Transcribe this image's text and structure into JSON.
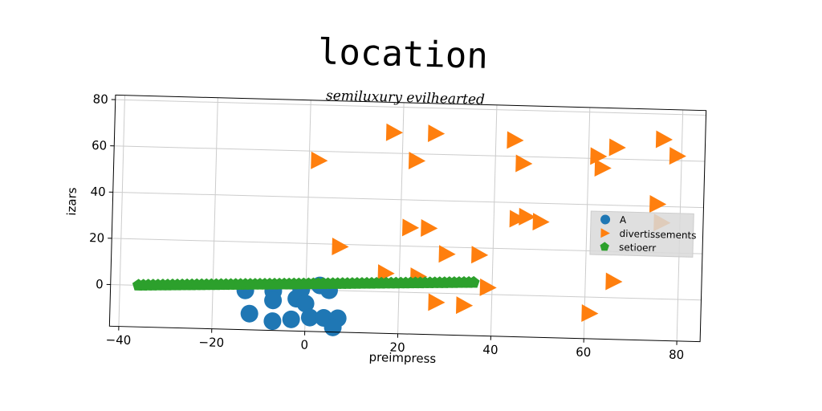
{
  "chart_data": {
    "type": "scatter",
    "title": "location",
    "subtitle": "semiluxury evilhearted",
    "xlabel": "preimpress",
    "ylabel": "izars",
    "xlim": [
      -42,
      85
    ],
    "ylim": [
      -18,
      82
    ],
    "xticks": [
      -40,
      -20,
      0,
      20,
      40,
      60,
      80
    ],
    "yticks": [
      0,
      20,
      40,
      60,
      80
    ],
    "grid": true,
    "legend_position": "center-right",
    "series": [
      {
        "name": "A",
        "marker": "circle",
        "color": "#1f77b4",
        "points": [
          [
            -13,
            -1
          ],
          [
            -7,
            -1
          ],
          [
            -1,
            0
          ],
          [
            3,
            2
          ],
          [
            5,
            0
          ],
          [
            -12,
            -11
          ],
          [
            -7,
            -5
          ],
          [
            -2,
            -4
          ],
          [
            0,
            -6
          ],
          [
            -7,
            -14
          ],
          [
            -3,
            -13
          ],
          [
            1,
            -12
          ],
          [
            4,
            -12
          ],
          [
            7,
            -12
          ],
          [
            6,
            -16
          ]
        ]
      },
      {
        "name": "divertissements",
        "marker": "triangle-right",
        "color": "#ff7f0e",
        "points": [
          [
            18,
            69
          ],
          [
            27,
            69
          ],
          [
            44,
            67
          ],
          [
            62,
            61
          ],
          [
            66,
            65
          ],
          [
            76,
            69
          ],
          [
            79,
            62
          ],
          [
            2,
            56
          ],
          [
            23,
            57
          ],
          [
            46,
            57
          ],
          [
            63,
            56
          ],
          [
            75,
            41
          ],
          [
            76,
            33
          ],
          [
            45,
            33
          ],
          [
            47,
            34
          ],
          [
            50,
            32
          ],
          [
            22,
            28
          ],
          [
            26,
            28
          ],
          [
            7,
            19
          ],
          [
            30,
            17
          ],
          [
            37,
            17
          ],
          [
            17,
            8
          ],
          [
            24,
            7
          ],
          [
            66,
            7
          ],
          [
            39,
            3
          ],
          [
            28,
            -4
          ],
          [
            34,
            -5
          ],
          [
            61,
            -7
          ]
        ]
      },
      {
        "name": "setioerr",
        "marker": "pentagon",
        "color": "#2ca02c",
        "line_from": [
          -36,
          0
        ],
        "line_to": [
          36,
          5
        ],
        "count": 70
      }
    ]
  }
}
